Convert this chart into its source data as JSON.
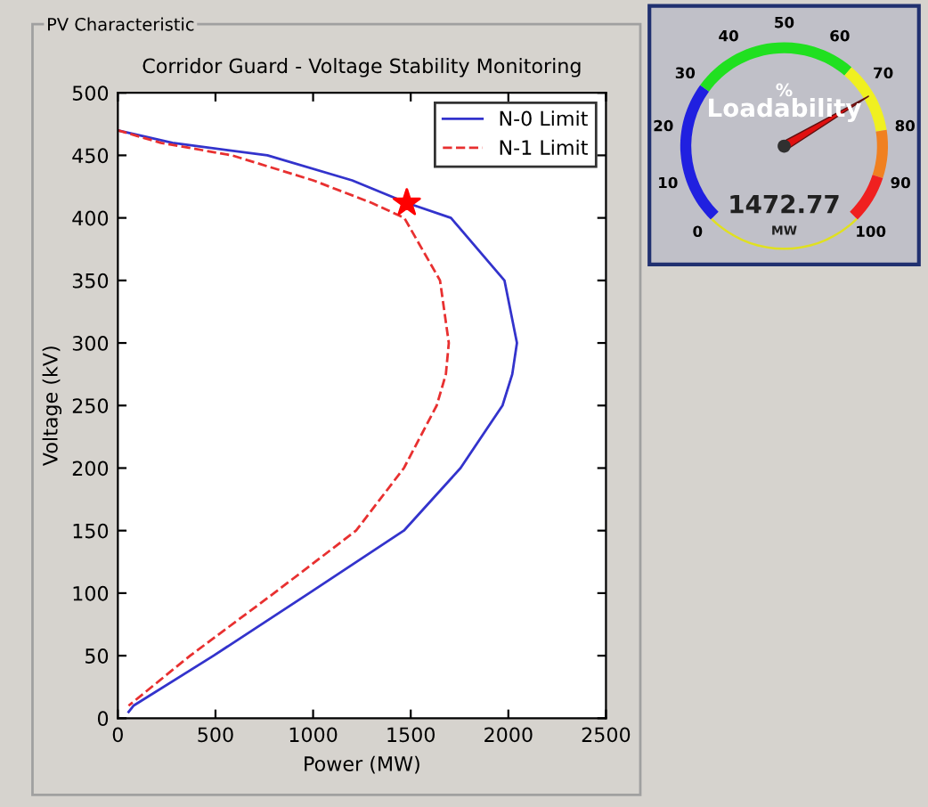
{
  "chart_data": [
    {
      "type": "line",
      "title": "Corridor Guard - Voltage Stability Monitoring",
      "xlabel": "Power (MW)",
      "ylabel": "Voltage (kV)",
      "annotations": [
        "PV Characteristic"
      ],
      "xlim": [
        0,
        2500
      ],
      "ylim": [
        0,
        500
      ],
      "xticks": [
        0,
        500,
        1000,
        1500,
        2000,
        2500
      ],
      "yticks": [
        0,
        50,
        100,
        150,
        200,
        250,
        300,
        350,
        400,
        450,
        500
      ],
      "grid": false,
      "legend": "top right",
      "series": [
        {
          "name": "N-0 Limit",
          "color": "#3333cc",
          "line_style": "solid",
          "x": [
            0,
            280,
            766,
            1200,
            1480,
            1706,
            1980,
            2044,
            2020,
            1970,
            1755,
            1465,
            980,
            490,
            80,
            55
          ],
          "values": [
            470,
            460,
            450,
            430,
            412,
            400,
            350,
            300,
            275,
            250,
            200,
            150,
            100,
            50,
            10,
            5
          ]
        },
        {
          "name": "N-1 Limit",
          "color": "#e83030",
          "line_style": "dashed",
          "x": [
            0,
            220,
            584,
            1000,
            1300,
            1467,
            1650,
            1695,
            1680,
            1633,
            1465,
            1220,
            800,
            370,
            55
          ],
          "values": [
            470,
            460,
            450,
            430,
            412,
            400,
            350,
            300,
            275,
            250,
            200,
            150,
            100,
            50,
            10
          ]
        },
        {
          "type": "scatter",
          "color": "#ff0000",
          "marker": "star",
          "x": [
            1480
          ],
          "values": [
            412
          ]
        }
      ]
    },
    {
      "type": "other",
      "categories": [
        "0",
        "10",
        "20",
        "30",
        "40",
        "50",
        "60",
        "70",
        "80",
        "90",
        "100"
      ],
      "annotations": [
        "%",
        "Loadability",
        "1472.77",
        "MW"
      ]
    }
  ]
}
